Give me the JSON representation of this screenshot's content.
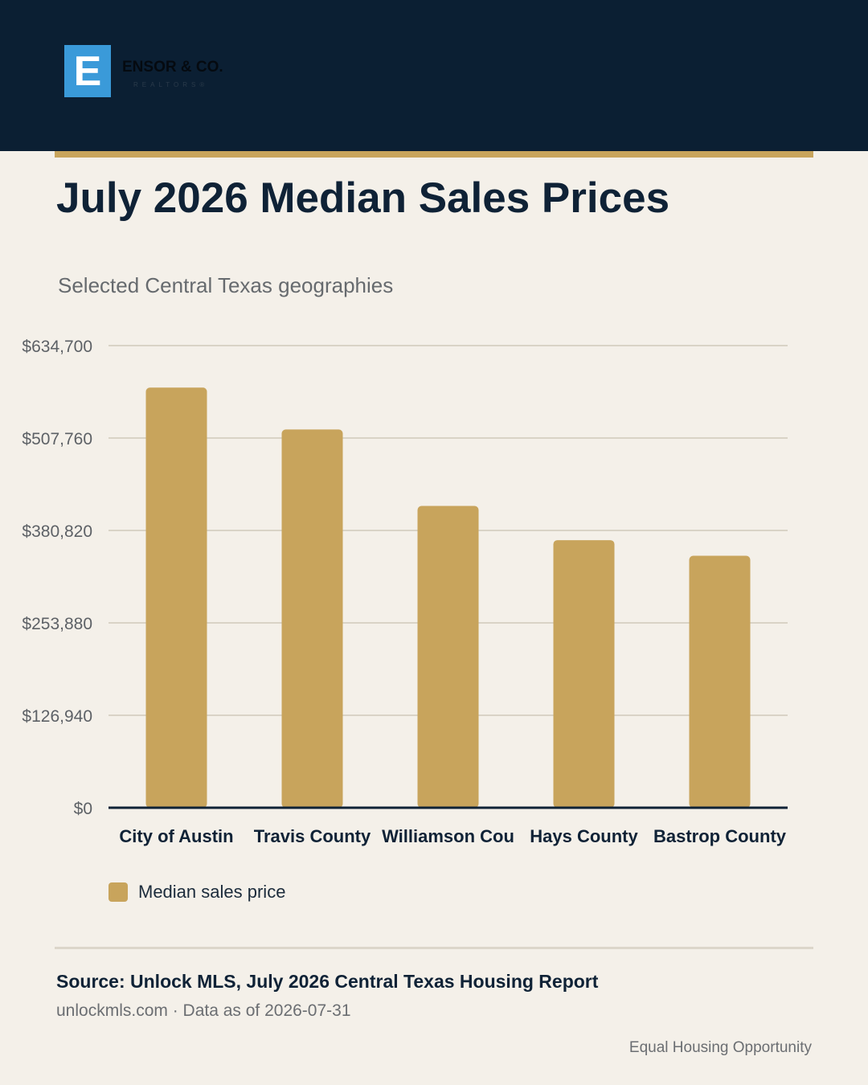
{
  "brand": {
    "logo_letter": "E",
    "name": "ENSOR & CO.",
    "tagline": "REALTORS®"
  },
  "colors": {
    "header_bg": "#0b1f33",
    "accent_gold": "#c8a45c",
    "page_bg": "#f4f0e9",
    "logo_blue": "#3a9ad9"
  },
  "chart_data": {
    "type": "bar",
    "title": "July 2026 Median Sales Prices",
    "subtitle": "Selected Central Texas geographies",
    "categories": [
      "City of Austin",
      "Travis County",
      "Williamson Cou",
      "Hays County",
      "Bastrop County"
    ],
    "series": [
      {
        "name": "Median sales price",
        "values": [
          577000,
          519500,
          414500,
          367500,
          346000
        ],
        "color": "#c8a45c"
      }
    ],
    "yticks": [
      "$0",
      "$126,940",
      "$253,880",
      "$380,820",
      "$507,760",
      "$634,700"
    ],
    "ylim": [
      0,
      634700
    ],
    "grid": true,
    "legend": "bottom-left"
  },
  "footer": {
    "source": "Source: Unlock MLS, July 2026 Central Texas Housing Report",
    "source_sub": "unlockmls.com · Data as of 2026-07-31",
    "equal_housing": "Equal Housing Opportunity"
  }
}
